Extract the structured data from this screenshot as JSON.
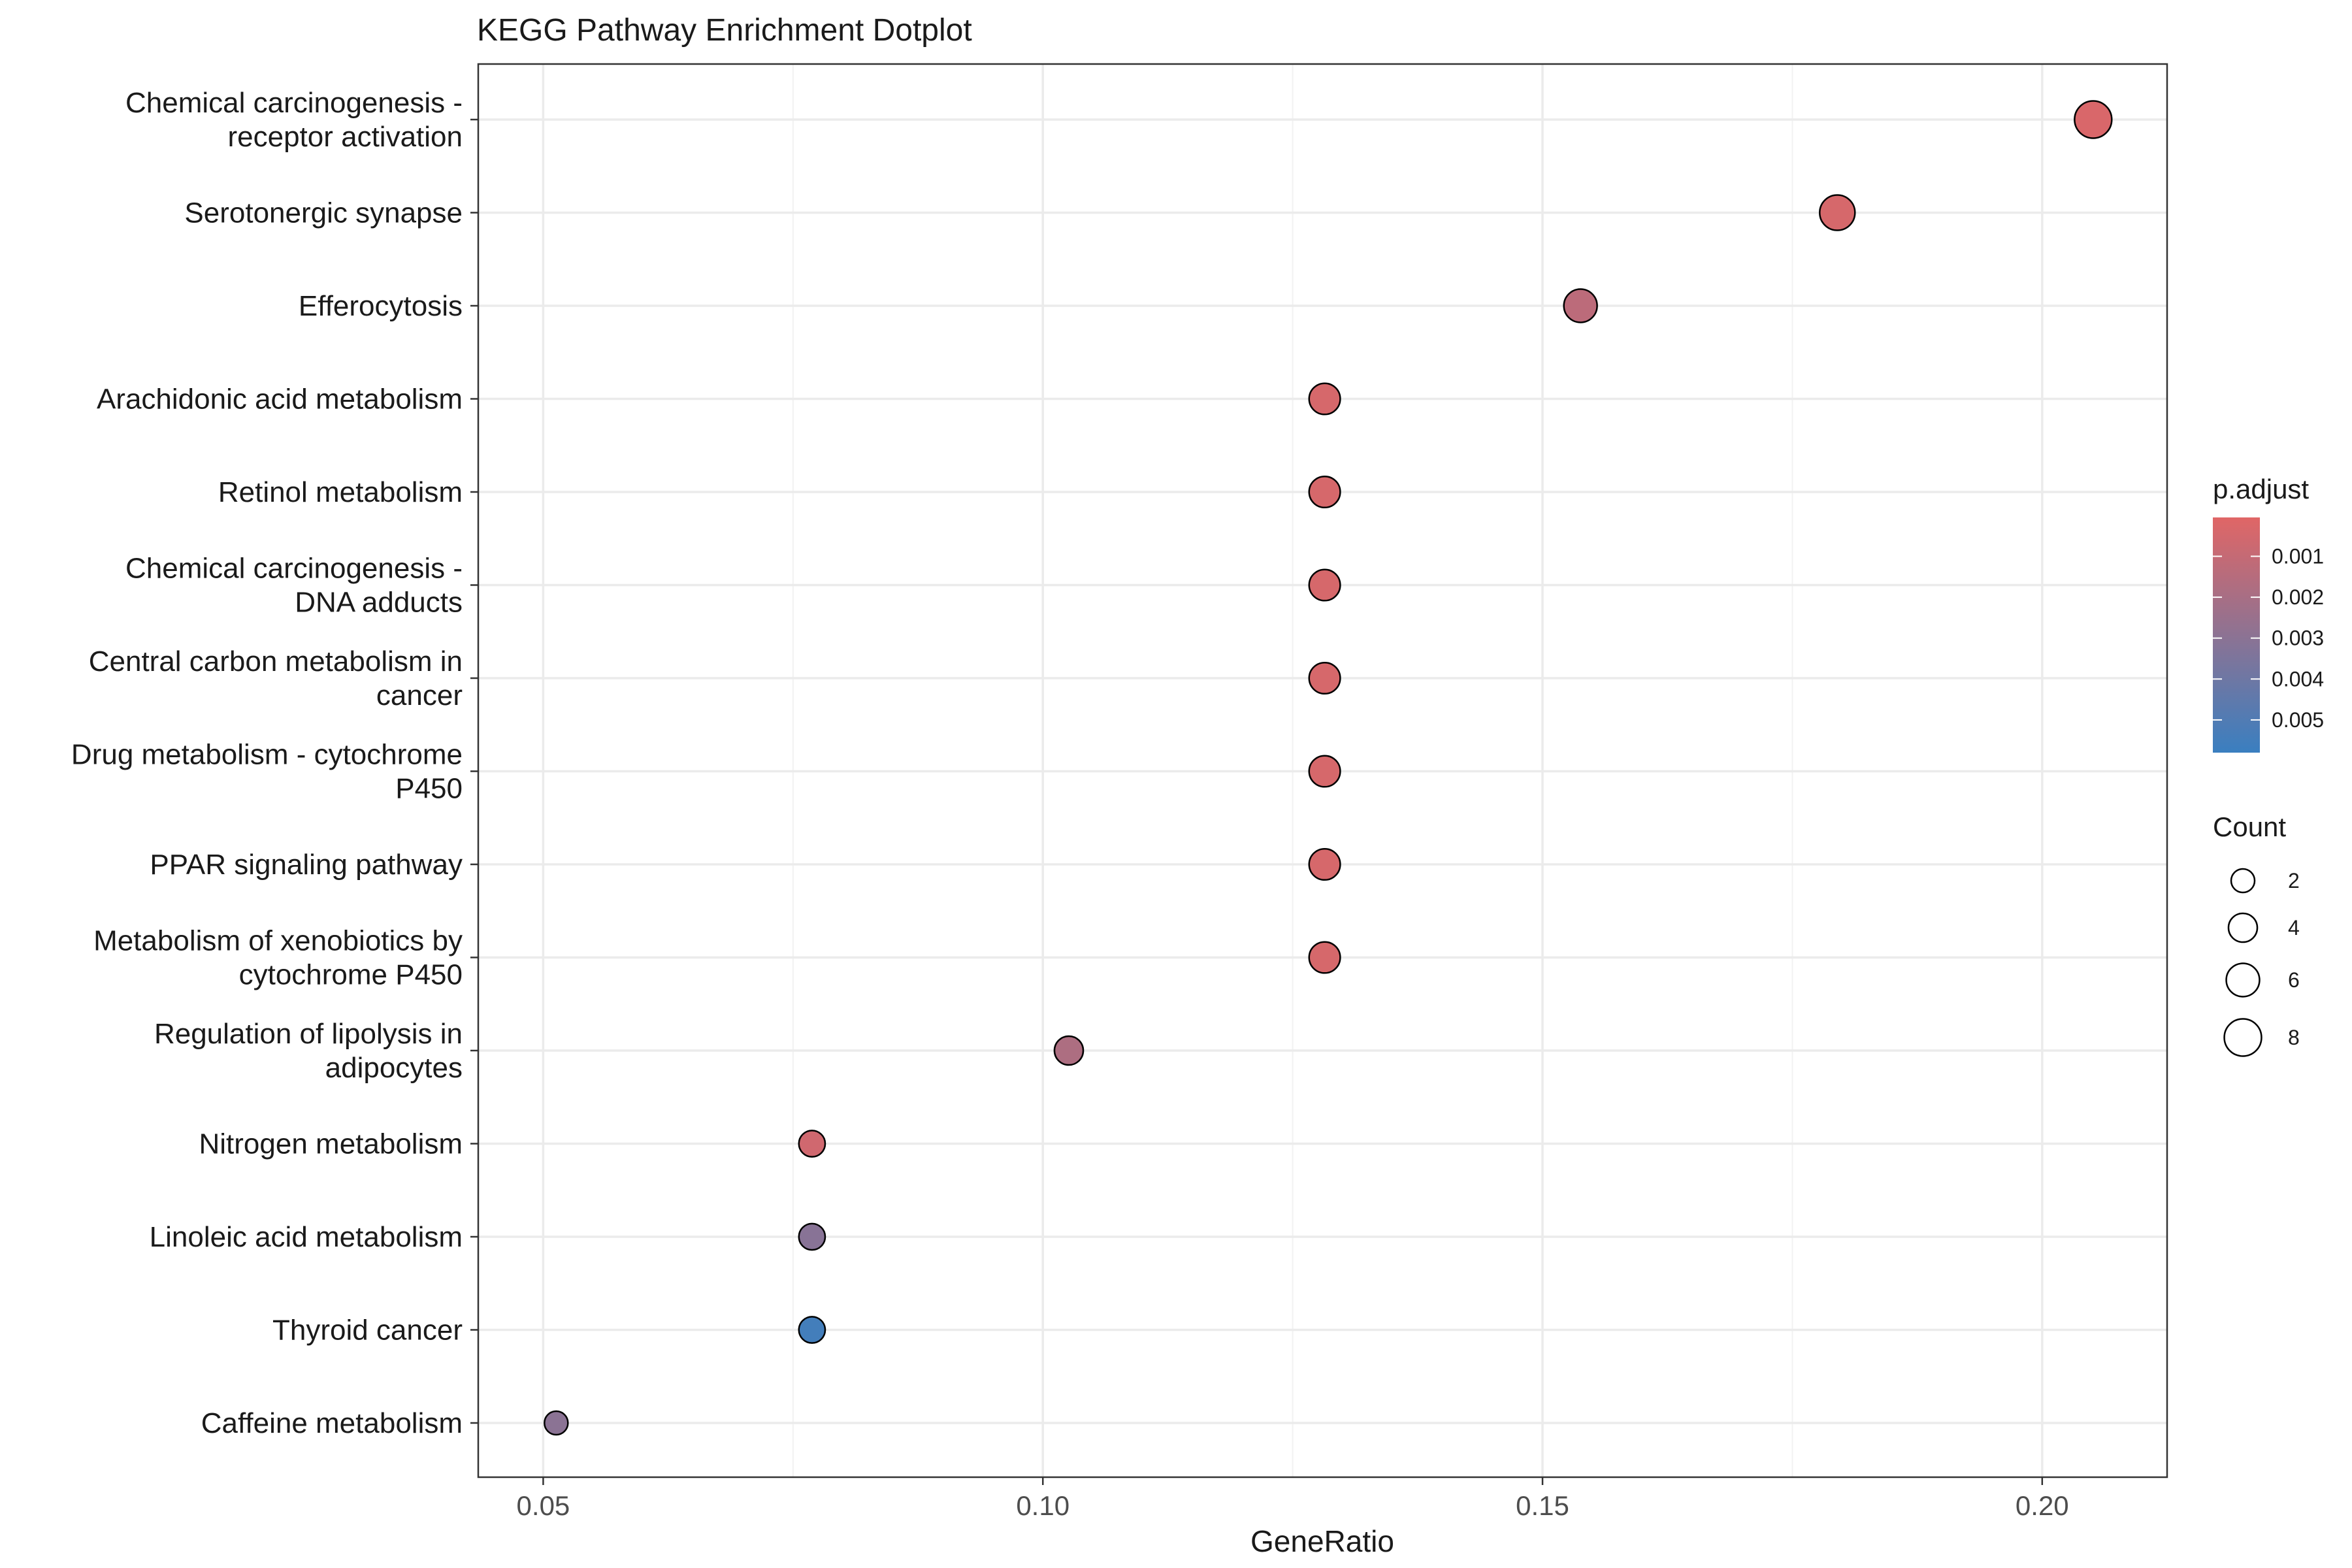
{
  "chart_data": {
    "type": "scatter",
    "title": "KEGG Pathway Enrichment Dotplot",
    "xlabel": "GeneRatio",
    "ylabel": "",
    "xlim": [
      0.0435,
      0.2125
    ],
    "x_ticks": [
      0.05,
      0.1,
      0.15,
      0.2
    ],
    "x_tick_labels": [
      "0.05",
      "0.10",
      "0.15",
      "0.20"
    ],
    "grid": true,
    "legend_position": "right",
    "colors": {
      "low": "#e06666",
      "high": "#3a7fc0",
      "point_stroke": "#000000"
    },
    "color_legend": {
      "title": "p.adjust",
      "range": [
        5e-05,
        0.0058
      ],
      "ticks": [
        0.001,
        0.002,
        0.003,
        0.004,
        0.005
      ],
      "tick_labels": [
        "0.001",
        "0.002",
        "0.003",
        "0.004",
        "0.005"
      ]
    },
    "size_legend": {
      "title": "Count",
      "values": [
        2,
        4,
        6,
        8
      ],
      "labels": [
        "2",
        "4",
        "6",
        "8"
      ]
    },
    "points": [
      {
        "label": [
          "Chemical carcinogenesis -",
          "receptor activation"
        ],
        "x": 0.2051,
        "count": 8,
        "p_adjust": 0.0003
      },
      {
        "label": [
          "Serotonergic synapse"
        ],
        "x": 0.1795,
        "count": 7,
        "p_adjust": 0.0004
      },
      {
        "label": [
          "Efferocytosis"
        ],
        "x": 0.1538,
        "count": 6,
        "p_adjust": 0.0013
      },
      {
        "label": [
          "Arachidonic acid metabolism"
        ],
        "x": 0.1282,
        "count": 5,
        "p_adjust": 0.0004
      },
      {
        "label": [
          "Retinol metabolism"
        ],
        "x": 0.1282,
        "count": 5,
        "p_adjust": 0.0004
      },
      {
        "label": [
          "Chemical carcinogenesis -",
          "DNA adducts"
        ],
        "x": 0.1282,
        "count": 5,
        "p_adjust": 0.0004
      },
      {
        "label": [
          "Central carbon metabolism in",
          "cancer"
        ],
        "x": 0.1282,
        "count": 5,
        "p_adjust": 0.0004
      },
      {
        "label": [
          "Drug metabolism - cytochrome",
          "P450"
        ],
        "x": 0.1282,
        "count": 5,
        "p_adjust": 0.0004
      },
      {
        "label": [
          "PPAR signaling pathway"
        ],
        "x": 0.1282,
        "count": 5,
        "p_adjust": 0.0004
      },
      {
        "label": [
          "Metabolism of xenobiotics by",
          "cytochrome P450"
        ],
        "x": 0.1282,
        "count": 5,
        "p_adjust": 0.0004
      },
      {
        "label": [
          "Regulation of lipolysis in",
          "adipocytes"
        ],
        "x": 0.1026,
        "count": 4,
        "p_adjust": 0.0018
      },
      {
        "label": [
          "Nitrogen metabolism"
        ],
        "x": 0.0769,
        "count": 3,
        "p_adjust": 0.0006
      },
      {
        "label": [
          "Linoleic acid metabolism"
        ],
        "x": 0.0769,
        "count": 3,
        "p_adjust": 0.0031
      },
      {
        "label": [
          "Thyroid cancer"
        ],
        "x": 0.0769,
        "count": 3,
        "p_adjust": 0.0055
      },
      {
        "label": [
          "Caffeine metabolism"
        ],
        "x": 0.0513,
        "count": 2,
        "p_adjust": 0.003
      }
    ]
  }
}
